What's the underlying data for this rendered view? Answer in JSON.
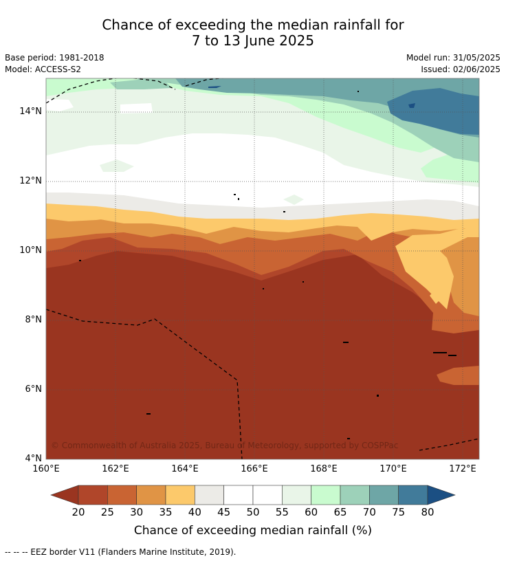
{
  "title_line1": "Chance of exceeding the median rainfall for",
  "title_line2": "7 to 13 June 2025",
  "base_period": "Base period: 1981-2018",
  "model": "Model: ACCESS-S2",
  "model_run": "Model run: 31/05/2025",
  "issued": "Issued: 02/06/2025",
  "lat_labels": [
    "14°N",
    "12°N",
    "10°N",
    "8°N",
    "6°N",
    "4°N"
  ],
  "lon_labels": [
    "160°E",
    "162°E",
    "164°E",
    "166°E",
    "168°E",
    "170°E",
    "172°E"
  ],
  "copyright": "© Commonwealth of Australia 2025, Bureau of Meteorology, supported by COSPPac",
  "colorbar": {
    "ticks": [
      "20",
      "25",
      "30",
      "35",
      "40",
      "45",
      "50",
      "55",
      "60",
      "65",
      "70",
      "75",
      "80"
    ],
    "colors": [
      "#9a3520",
      "#b0462a",
      "#c96433",
      "#e09445",
      "#fcc96b",
      "#ecebe7",
      "#ffffff",
      "#ffffff",
      "#e9f5e8",
      "#c9fbcf",
      "#9dd1b9",
      "#6ea6a6",
      "#417b9a",
      "#1b4f83"
    ],
    "label": "Chance of exceeding median rainfall (%)"
  },
  "footer": "-- -- -- EEZ border V11 (Flanders Marine Institute, 2019).",
  "map_extent": {
    "lon_min": 160,
    "lon_max": 172.5,
    "lat_min": 4,
    "lat_max": 15
  }
}
